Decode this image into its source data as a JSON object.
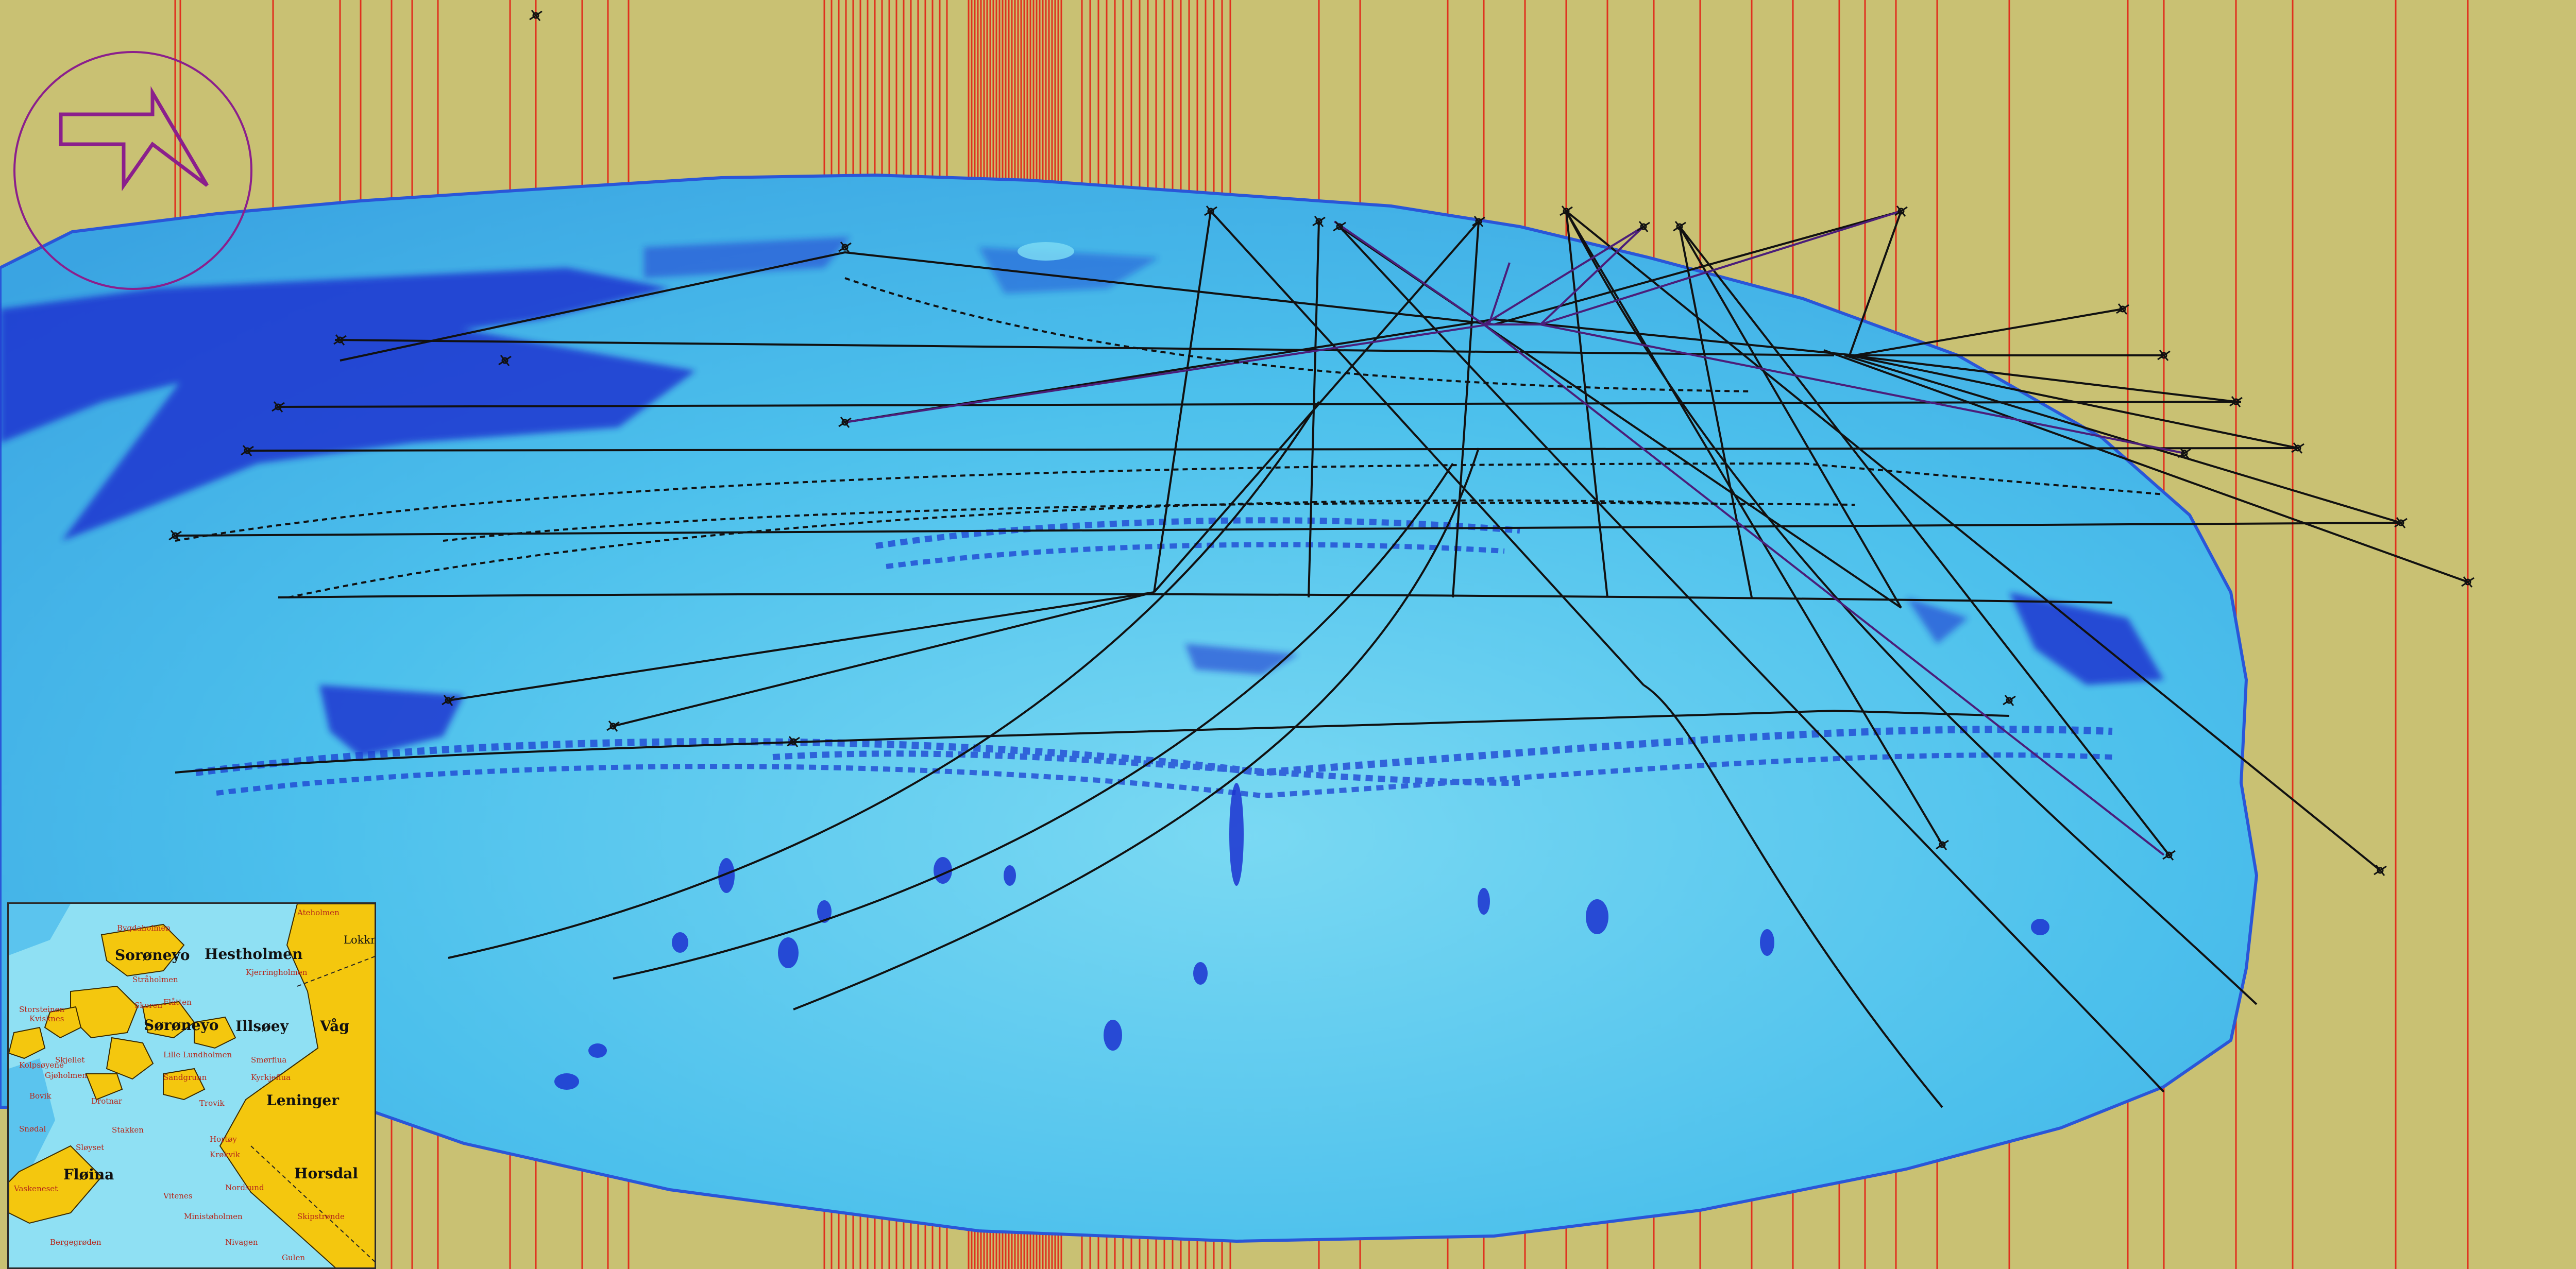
{
  "viewer": {
    "background_color": "#c9c173",
    "seabed_colors": {
      "light": "#6fd6f2",
      "mid": "#3fb0e6",
      "deep": "#1c2fd0"
    },
    "line_color": "#111111",
    "pole_color": "#e0301e"
  },
  "compass": {
    "icon": "north-arrow-icon",
    "color": "#8b1f8c"
  },
  "minimap": {
    "land_color": "#f4c70e",
    "water_color": "#8fe0f3",
    "labels": {
      "hestholmen": "Hestholmen",
      "soraneyo": "Sorøneyo",
      "sorneyo": "Sørøneyo",
      "illsoey": "Illsøey",
      "vag": "Våg",
      "leninger": "Leninger",
      "horsdal": "Horsdal",
      "floina": "Fløina",
      "lr_top": "Lokkn",
      "s1": "Bygdaholmen",
      "s2": "Ateholmen",
      "s3": "Stråholmen",
      "s4": "Kjerringholmen",
      "s5": "Skoren",
      "s6": "Storsteinen",
      "s7": "Flåtten",
      "s8": "Kvisknes",
      "s9": "Lille Lundholmen",
      "s10": "Smørflua",
      "s11": "Gjøholmen",
      "s12": "Skjellet",
      "s13": "Kolpsøyene",
      "s14": "Sandgrunn",
      "s15": "Kyrkjeflua",
      "s16": "Stakken",
      "s17": "Bovik",
      "s18": "Drotnar",
      "s19": "Vaskeneset",
      "s20": "Hortøy",
      "s21": "Krøkvik",
      "s22": "Nordsund",
      "s23": "Ministøholmen",
      "s24": "Skipstrønde",
      "s25": "Nivagen",
      "s26": "Gulen",
      "s27": "Bergegrøden",
      "s28": "Sløyset",
      "s29": "Trovik",
      "s30": "Vitenes",
      "s31": "Snødal"
    }
  }
}
